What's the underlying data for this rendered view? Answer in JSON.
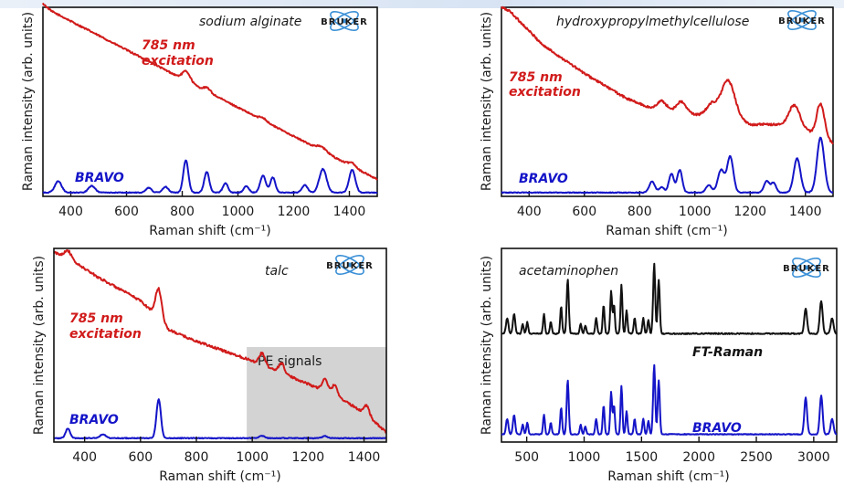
{
  "colors": {
    "red": "#d11a1a",
    "blue": "#1414c8",
    "black": "#111111",
    "region": "#d3d3d3"
  },
  "logo": {
    "text": "BRUKER",
    "icon": "bruker-atom-icon"
  },
  "chart_data": [
    {
      "type": "line",
      "sample": "sodium alginate",
      "xlabel": "Raman shift (cm⁻¹)",
      "ylabel": "Raman intensity (arb. units)",
      "xlim": [
        300,
        1500
      ],
      "ylim": [
        0,
        1
      ],
      "xticks": [
        400,
        600,
        800,
        1000,
        1200,
        1400
      ],
      "annotations": {
        "excitation_line1": "785 nm",
        "excitation_line2": "excitation"
      },
      "series": [
        {
          "name": "785 nm excitation",
          "color": "red",
          "baseline": [
            [
              300,
              1.02
            ],
            [
              330,
              0.98
            ],
            [
              1500,
              0.09
            ]
          ],
          "noise": 0.004,
          "peaks": [
            [
              815,
              0.05,
              14
            ],
            [
              890,
              0.02,
              12
            ],
            [
              1090,
              0.015,
              12
            ],
            [
              1300,
              0.02,
              18
            ],
            [
              1410,
              0.02,
              12
            ]
          ]
        },
        {
          "name": "BRAVO",
          "color": "blue",
          "baseline": [
            [
              300,
              0.02
            ],
            [
              1500,
              0.02
            ]
          ],
          "noise": 0.002,
          "peaks": [
            [
              355,
              0.06,
              12
            ],
            [
              475,
              0.035,
              12
            ],
            [
              680,
              0.025,
              10
            ],
            [
              740,
              0.03,
              10
            ],
            [
              813,
              0.17,
              9
            ],
            [
              888,
              0.11,
              9
            ],
            [
              955,
              0.05,
              9
            ],
            [
              1030,
              0.035,
              9
            ],
            [
              1090,
              0.09,
              10
            ],
            [
              1125,
              0.08,
              9
            ],
            [
              1240,
              0.04,
              10
            ],
            [
              1305,
              0.125,
              13
            ],
            [
              1410,
              0.12,
              11
            ]
          ]
        }
      ]
    },
    {
      "type": "line",
      "sample": "hydroxypropylmethylcellulose",
      "xlabel": "Raman shift (cm⁻¹)",
      "ylabel": "Raman intensity (arb. units)",
      "xlim": [
        300,
        1500
      ],
      "ylim": [
        0,
        1
      ],
      "xticks": [
        400,
        600,
        800,
        1000,
        1200,
        1400
      ],
      "annotations": {
        "excitation_line1": "785 nm",
        "excitation_line2": "excitation"
      },
      "series": [
        {
          "name": "785 nm excitation",
          "color": "red",
          "baseline": [
            [
              300,
              1.0
            ],
            [
              330,
              0.98
            ],
            [
              450,
              0.8
            ],
            [
              600,
              0.65
            ],
            [
              750,
              0.52
            ],
            [
              850,
              0.46
            ],
            [
              950,
              0.44
            ],
            [
              1100,
              0.42
            ],
            [
              1200,
              0.38
            ],
            [
              1300,
              0.38
            ],
            [
              1400,
              0.35
            ],
            [
              1500,
              0.28
            ]
          ],
          "noise": 0.006,
          "peaks": [
            [
              880,
              0.05,
              18
            ],
            [
              950,
              0.06,
              18
            ],
            [
              1060,
              0.06,
              18
            ],
            [
              1120,
              0.2,
              25
            ],
            [
              1360,
              0.12,
              20
            ],
            [
              1455,
              0.18,
              14
            ]
          ]
        },
        {
          "name": "BRAVO",
          "color": "blue",
          "baseline": [
            [
              300,
              0.02
            ],
            [
              1500,
              0.02
            ]
          ],
          "noise": 0.002,
          "peaks": [
            [
              845,
              0.06,
              10
            ],
            [
              880,
              0.03,
              9
            ],
            [
              915,
              0.1,
              9
            ],
            [
              945,
              0.12,
              9
            ],
            [
              1050,
              0.04,
              10
            ],
            [
              1095,
              0.12,
              12
            ],
            [
              1128,
              0.19,
              11
            ],
            [
              1260,
              0.06,
              10
            ],
            [
              1285,
              0.05,
              9
            ],
            [
              1370,
              0.18,
              12
            ],
            [
              1455,
              0.29,
              13
            ]
          ]
        }
      ]
    },
    {
      "type": "line",
      "sample": "talc",
      "xlabel": "Raman shift (cm⁻¹)",
      "ylabel": "Raman intensity (arb. units)",
      "xlim": [
        290,
        1480
      ],
      "ylim": [
        0,
        1
      ],
      "xticks": [
        400,
        600,
        800,
        1000,
        1200,
        1400
      ],
      "highlight_region": {
        "label": "PE signals",
        "from": 980,
        "to": 1480
      },
      "annotations": {
        "excitation_line1": "785 nm",
        "excitation_line2": "excitation"
      },
      "series": [
        {
          "name": "785 nm excitation",
          "color": "red",
          "baseline": [
            [
              290,
              0.98
            ],
            [
              340,
              0.95
            ],
            [
              450,
              0.85
            ],
            [
              600,
              0.73
            ],
            [
              660,
              0.65
            ],
            [
              700,
              0.58
            ],
            [
              800,
              0.52
            ],
            [
              900,
              0.47
            ],
            [
              1000,
              0.42
            ],
            [
              1100,
              0.36
            ],
            [
              1200,
              0.3
            ],
            [
              1300,
              0.24
            ],
            [
              1400,
              0.15
            ],
            [
              1480,
              0.05
            ]
          ],
          "noise": 0.006,
          "peaks": [
            [
              340,
              0.04,
              12
            ],
            [
              665,
              0.15,
              11
            ],
            [
              1035,
              0.06,
              10
            ],
            [
              1105,
              0.05,
              10
            ],
            [
              1260,
              0.06,
              10
            ],
            [
              1295,
              0.05,
              10
            ],
            [
              1410,
              0.05,
              10
            ]
          ]
        },
        {
          "name": "BRAVO",
          "color": "blue",
          "baseline": [
            [
              290,
              0.02
            ],
            [
              1480,
              0.02
            ]
          ],
          "noise": 0.002,
          "peaks": [
            [
              340,
              0.05,
              8
            ],
            [
              465,
              0.02,
              10
            ],
            [
              665,
              0.2,
              8
            ],
            [
              1035,
              0.012,
              10
            ],
            [
              1260,
              0.01,
              10
            ]
          ]
        }
      ]
    },
    {
      "type": "line",
      "sample": "acetaminophen",
      "xlabel": "Raman shift (cm⁻¹)",
      "ylabel": "Raman intensity (arb. units)",
      "xlim": [
        280,
        3200
      ],
      "ylim": [
        0,
        1
      ],
      "xticks": [
        500,
        1000,
        1500,
        2000,
        2500,
        3000
      ],
      "series": [
        {
          "name": "FT-Raman",
          "color": "black",
          "baseline": [
            [
              280,
              0.56
            ],
            [
              3200,
              0.56
            ]
          ],
          "noise": 0.003,
          "peaks": [
            [
              330,
              0.08,
              10
            ],
            [
              390,
              0.1,
              10
            ],
            [
              465,
              0.05,
              8
            ],
            [
              505,
              0.06,
              8
            ],
            [
              650,
              0.1,
              8
            ],
            [
              710,
              0.06,
              8
            ],
            [
              800,
              0.14,
              8
            ],
            [
              857,
              0.28,
              9
            ],
            [
              970,
              0.05,
              8
            ],
            [
              1010,
              0.04,
              8
            ],
            [
              1105,
              0.08,
              8
            ],
            [
              1170,
              0.15,
              8
            ],
            [
              1235,
              0.22,
              8
            ],
            [
              1260,
              0.15,
              8
            ],
            [
              1325,
              0.25,
              8
            ],
            [
              1370,
              0.12,
              8
            ],
            [
              1440,
              0.08,
              8
            ],
            [
              1515,
              0.08,
              8
            ],
            [
              1560,
              0.07,
              8
            ],
            [
              1610,
              0.36,
              9
            ],
            [
              1650,
              0.28,
              9
            ],
            [
              2930,
              0.13,
              12
            ],
            [
              3065,
              0.17,
              12
            ],
            [
              3160,
              0.08,
              12
            ]
          ]
        },
        {
          "name": "BRAVO",
          "color": "blue",
          "baseline": [
            [
              280,
              0.04
            ],
            [
              3200,
              0.04
            ]
          ],
          "noise": 0.002,
          "peaks": [
            [
              330,
              0.08,
              10
            ],
            [
              390,
              0.1,
              10
            ],
            [
              465,
              0.05,
              8
            ],
            [
              505,
              0.06,
              8
            ],
            [
              650,
              0.1,
              8
            ],
            [
              710,
              0.06,
              8
            ],
            [
              800,
              0.14,
              8
            ],
            [
              857,
              0.28,
              9
            ],
            [
              970,
              0.05,
              8
            ],
            [
              1010,
              0.04,
              8
            ],
            [
              1105,
              0.08,
              8
            ],
            [
              1170,
              0.15,
              8
            ],
            [
              1235,
              0.22,
              8
            ],
            [
              1260,
              0.15,
              8
            ],
            [
              1325,
              0.25,
              8
            ],
            [
              1370,
              0.12,
              8
            ],
            [
              1440,
              0.08,
              8
            ],
            [
              1515,
              0.08,
              8
            ],
            [
              1560,
              0.07,
              8
            ],
            [
              1610,
              0.36,
              9
            ],
            [
              1650,
              0.28,
              9
            ],
            [
              2930,
              0.19,
              12
            ],
            [
              3065,
              0.2,
              12
            ],
            [
              3160,
              0.08,
              12
            ]
          ]
        }
      ]
    }
  ]
}
